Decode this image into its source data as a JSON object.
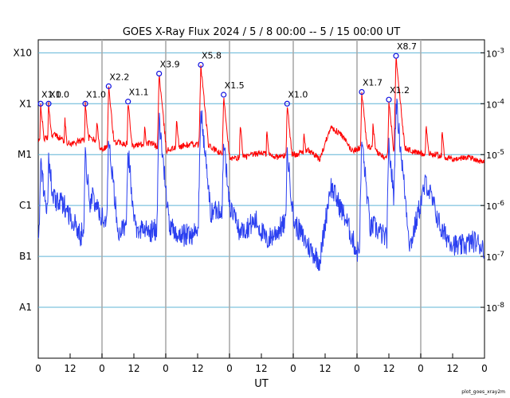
{
  "chart_data": {
    "type": "line",
    "title": "GOES X-Ray Flux   2024 /  5 /  8   00:00 --  5 / 15   00:00   UT",
    "xlabel": "UT",
    "ylabel": "",
    "y_scale": "log",
    "y_unit": "W/m^2",
    "ylim": [
      1e-09,
      0.0018
    ],
    "xlim": [
      0,
      168
    ],
    "grid": true,
    "day_boundaries_hours": [
      24,
      48,
      72,
      96,
      120,
      144
    ],
    "x_ticks": [
      {
        "hour": 0,
        "label": "0"
      },
      {
        "hour": 12,
        "label": "12"
      },
      {
        "hour": 24,
        "label": "0"
      },
      {
        "hour": 36,
        "label": "12"
      },
      {
        "hour": 48,
        "label": "0"
      },
      {
        "hour": 60,
        "label": "12"
      },
      {
        "hour": 72,
        "label": "0"
      },
      {
        "hour": 84,
        "label": "12"
      },
      {
        "hour": 96,
        "label": "0"
      },
      {
        "hour": 108,
        "label": "12"
      },
      {
        "hour": 120,
        "label": "0"
      },
      {
        "hour": 132,
        "label": "12"
      },
      {
        "hour": 144,
        "label": "0"
      },
      {
        "hour": 156,
        "label": "12"
      },
      {
        "hour": 168,
        "label": "0"
      }
    ],
    "left_axis_labels": [
      {
        "value": 1e-08,
        "label": "A1"
      },
      {
        "value": 1e-07,
        "label": "B1"
      },
      {
        "value": 1e-06,
        "label": "C1"
      },
      {
        "value": 1e-05,
        "label": "M1"
      },
      {
        "value": 0.0001,
        "label": "X1"
      },
      {
        "value": 0.001,
        "label": "X10"
      }
    ],
    "right_axis_labels": [
      {
        "value": 1e-08,
        "base": "10",
        "exp": "-8"
      },
      {
        "value": 1e-07,
        "base": "10",
        "exp": "-7"
      },
      {
        "value": 1e-06,
        "base": "10",
        "exp": "-6"
      },
      {
        "value": 1e-05,
        "base": "10",
        "exp": "-5"
      },
      {
        "value": 0.0001,
        "base": "10",
        "exp": "-4"
      },
      {
        "value": 0.001,
        "base": "10",
        "exp": "-3"
      }
    ],
    "flares": [
      {
        "hour": 0.9,
        "value": 0.0001,
        "label": "X1.0"
      },
      {
        "hour": 3.9,
        "value": 0.0001,
        "label": "X1.0"
      },
      {
        "hour": 17.7,
        "value": 0.0001,
        "label": "X1.0"
      },
      {
        "hour": 26.5,
        "value": 0.00022,
        "label": "X2.2"
      },
      {
        "hour": 33.8,
        "value": 0.00011,
        "label": "X1.1"
      },
      {
        "hour": 45.5,
        "value": 0.00039,
        "label": "X3.9"
      },
      {
        "hour": 61.2,
        "value": 0.00058,
        "label": "X5.8"
      },
      {
        "hour": 69.8,
        "value": 0.00015,
        "label": "X1.5"
      },
      {
        "hour": 93.7,
        "value": 0.0001,
        "label": "X1.0"
      },
      {
        "hour": 121.8,
        "value": 0.00017,
        "label": "X1.7"
      },
      {
        "hour": 132.0,
        "value": 0.00012,
        "label": "X1.2"
      },
      {
        "hour": 134.7,
        "value": 0.00087,
        "label": "X8.7"
      }
    ],
    "series": [
      {
        "band": "long",
        "color": "#ff0000",
        "background": [
          [
            0,
            1.8e-05
          ],
          [
            6,
            2.5e-05
          ],
          [
            12,
            1.6e-05
          ],
          [
            20,
            2.2e-05
          ],
          [
            24,
            1.3e-05
          ],
          [
            30,
            1.8e-05
          ],
          [
            36,
            1.5e-05
          ],
          [
            42,
            1.7e-05
          ],
          [
            48,
            1.2e-05
          ],
          [
            52,
            1.4e-05
          ],
          [
            58,
            1.6e-05
          ],
          [
            64,
            1.5e-05
          ],
          [
            72,
            8e-06
          ],
          [
            78,
            9e-06
          ],
          [
            84,
            1.1e-05
          ],
          [
            90,
            9e-06
          ],
          [
            96,
            1e-05
          ],
          [
            102,
            1.2e-05
          ],
          [
            106,
            8e-06
          ],
          [
            110,
            3.5e-05
          ],
          [
            114,
            2.5e-05
          ],
          [
            118,
            1.2e-05
          ],
          [
            124,
            1.5e-05
          ],
          [
            130,
            9e-06
          ],
          [
            136,
            1.5e-05
          ],
          [
            142,
            1.1e-05
          ],
          [
            150,
            1e-05
          ],
          [
            156,
            8e-06
          ],
          [
            162,
            9e-06
          ],
          [
            168,
            7e-06
          ]
        ],
        "peaks": [
          [
            0.9,
            0.0001
          ],
          [
            3.9,
            0.0001
          ],
          [
            10,
            5e-05
          ],
          [
            17.7,
            0.0001
          ],
          [
            22,
            5e-05
          ],
          [
            26.5,
            0.00022
          ],
          [
            33.8,
            0.00011
          ],
          [
            40,
            4e-05
          ],
          [
            45.5,
            0.00039
          ],
          [
            52,
            5e-05
          ],
          [
            61.2,
            0.00058
          ],
          [
            69.8,
            0.00015
          ],
          [
            76,
            4e-05
          ],
          [
            86,
            3e-05
          ],
          [
            93.7,
            0.0001
          ],
          [
            100,
            3e-05
          ],
          [
            121.8,
            0.00017
          ],
          [
            126,
            4e-05
          ],
          [
            132,
            0.00012
          ],
          [
            134.7,
            0.00087
          ],
          [
            146,
            4e-05
          ],
          [
            152,
            3e-05
          ]
        ]
      },
      {
        "band": "short",
        "color": "#2a3ff0",
        "background": [
          [
            0,
            3e-07
          ],
          [
            4,
            1.5e-06
          ],
          [
            10,
            1e-06
          ],
          [
            16,
            2.5e-07
          ],
          [
            20,
            1.5e-06
          ],
          [
            24,
            6e-07
          ],
          [
            30,
            3e-07
          ],
          [
            36,
            4e-07
          ],
          [
            42,
            3e-07
          ],
          [
            48,
            4e-07
          ],
          [
            54,
            2.5e-07
          ],
          [
            60,
            3e-07
          ],
          [
            66,
            8e-07
          ],
          [
            72,
            1e-06
          ],
          [
            76,
            3e-07
          ],
          [
            82,
            5e-07
          ],
          [
            86,
            2e-07
          ],
          [
            92,
            4e-07
          ],
          [
            96,
            5e-07
          ],
          [
            102,
            1.5e-07
          ],
          [
            106,
            8e-08
          ],
          [
            110,
            2.5e-06
          ],
          [
            116,
            5e-07
          ],
          [
            120,
            1.2e-07
          ],
          [
            126,
            4e-07
          ],
          [
            132,
            2e-07
          ],
          [
            140,
            1.6e-07
          ],
          [
            146,
            3e-06
          ],
          [
            152,
            3e-07
          ],
          [
            158,
            1.5e-07
          ],
          [
            164,
            2e-07
          ],
          [
            168,
            1.5e-07
          ]
        ],
        "peaks": [
          [
            0.9,
            8e-06
          ],
          [
            3.9,
            1e-05
          ],
          [
            17.7,
            1e-05
          ],
          [
            26.5,
            2.5e-05
          ],
          [
            33.8,
            1.2e-05
          ],
          [
            45.5,
            5e-05
          ],
          [
            61.2,
            8e-05
          ],
          [
            69.8,
            1.8e-05
          ],
          [
            93.7,
            1.2e-05
          ],
          [
            121.8,
            2e-05
          ],
          [
            132,
            1.5e-05
          ],
          [
            134.7,
            0.00012
          ]
        ]
      }
    ]
  },
  "footer_credit": "plot_goes_xray2m"
}
